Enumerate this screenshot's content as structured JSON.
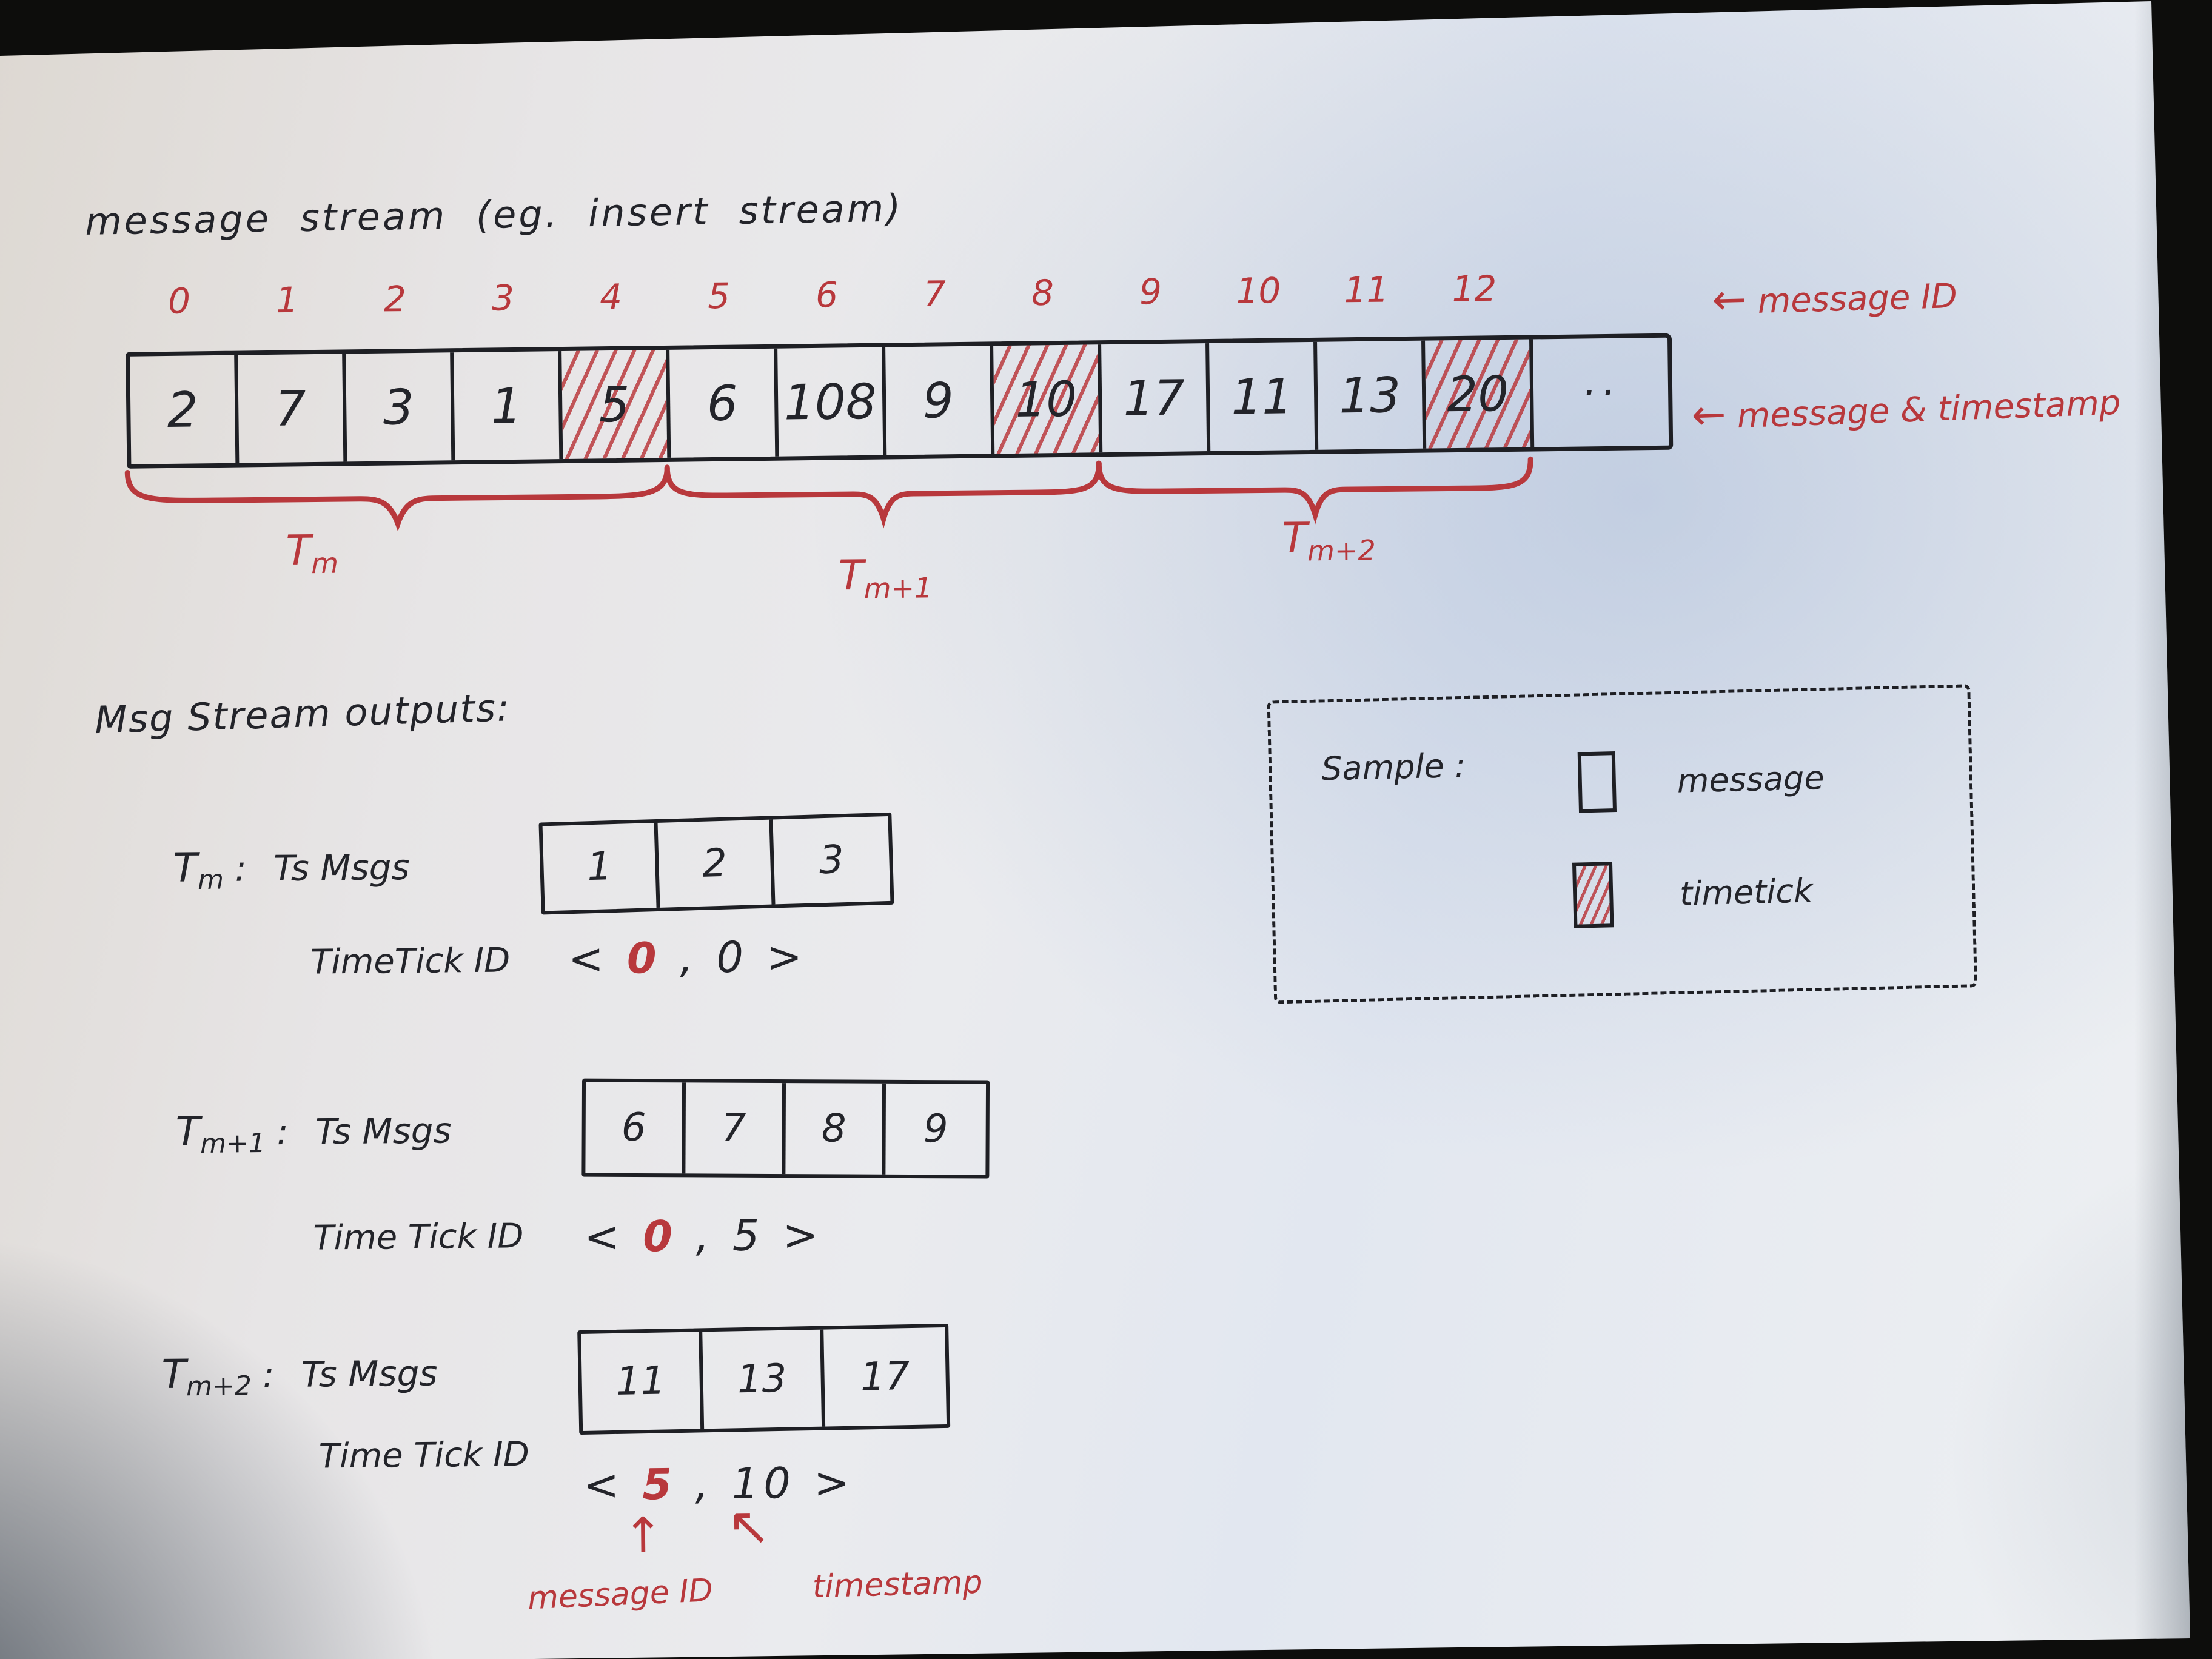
{
  "title": "message stream (eg. insert stream)",
  "stream": {
    "arrow": "←",
    "index_row_label": "message ID",
    "cells_row_label": "message & timestamp",
    "cells": [
      {
        "index": "0",
        "value": "2",
        "hatched": false
      },
      {
        "index": "1",
        "value": "7",
        "hatched": false
      },
      {
        "index": "2",
        "value": "3",
        "hatched": false
      },
      {
        "index": "3",
        "value": "1",
        "hatched": false
      },
      {
        "index": "4",
        "value": "5",
        "hatched": true
      },
      {
        "index": "5",
        "value": "6",
        "hatched": false
      },
      {
        "index": "6",
        "value": "108",
        "hatched": false
      },
      {
        "index": "7",
        "value": "9",
        "hatched": false
      },
      {
        "index": "8",
        "value": "10",
        "hatched": true
      },
      {
        "index": "9",
        "value": "17",
        "hatched": false
      },
      {
        "index": "10",
        "value": "11",
        "hatched": false
      },
      {
        "index": "11",
        "value": "13",
        "hatched": false
      },
      {
        "index": "12",
        "value": "20",
        "hatched": true
      },
      {
        "index": "",
        "value": "··",
        "hatched": false
      }
    ],
    "groups": [
      {
        "base": "T",
        "sub": "m",
        "from": 0,
        "to": 4
      },
      {
        "base": "T",
        "sub": "m+1",
        "from": 5,
        "to": 8
      },
      {
        "base": "T",
        "sub": "m+2",
        "from": 9,
        "to": 12
      }
    ]
  },
  "outputs": {
    "heading": "Msg Stream outputs:",
    "label_sep": " : ",
    "tick_open": "<",
    "tick_sep": ",",
    "tick_close": ">",
    "rows": [
      {
        "window_base": "T",
        "window_sub": "m",
        "msgs_label": "Ts Msgs",
        "cells": [
          "1",
          "2",
          "3"
        ],
        "tick_label": "TimeTick ID",
        "tick_id": "0",
        "tick_ts": "0"
      },
      {
        "window_base": "T",
        "window_sub": "m+1",
        "msgs_label": "Ts Msgs",
        "cells": [
          "6",
          "7",
          "8",
          "9"
        ],
        "tick_label": "Time Tick ID",
        "tick_id": "0",
        "tick_ts": "5"
      },
      {
        "window_base": "T",
        "window_sub": "m+2",
        "msgs_label": "Ts Msgs",
        "cells": [
          "11",
          "13",
          "17"
        ],
        "tick_label": "Time Tick ID",
        "tick_id": "5",
        "tick_ts": "10"
      }
    ],
    "annotations": {
      "id_arrow": "↑",
      "ts_arrow": "↖",
      "id_label": "message ID",
      "ts_label": "timestamp"
    }
  },
  "legend": {
    "title": "Sample :",
    "items": [
      {
        "label": "message",
        "hatched": false
      },
      {
        "label": "timetick",
        "hatched": true
      }
    ]
  },
  "colors": {
    "ink": "#23242a",
    "red": "#b8383c",
    "paper": "#e9eaee",
    "background": "#0d0d0c"
  }
}
